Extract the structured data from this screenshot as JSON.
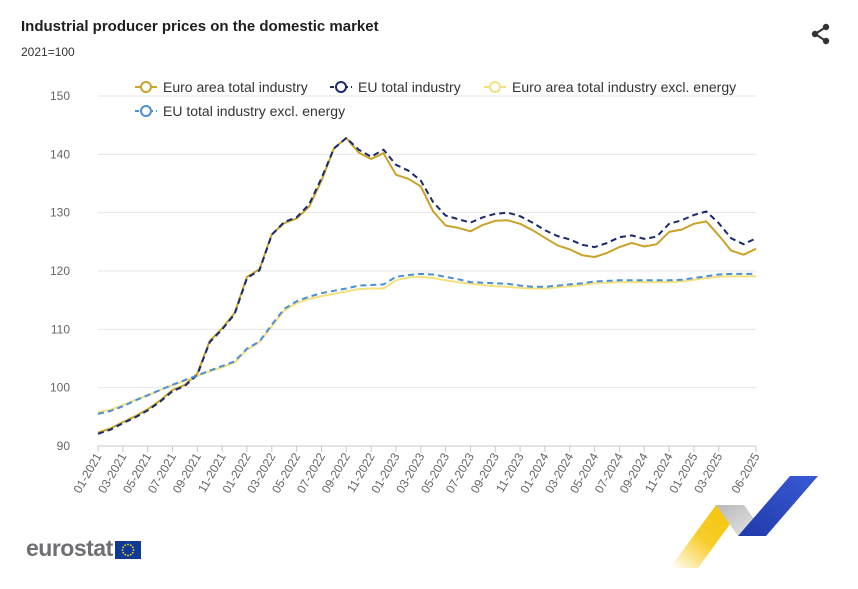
{
  "header": {
    "title": "Industrial producer prices on the domestic market",
    "subtitle": "2021=100"
  },
  "share": {
    "icon": "share-icon"
  },
  "logo": {
    "text": "eurostat",
    "flag_icon": "eu-flag-icon"
  },
  "colors": {
    "ea_total": "#c9a227",
    "eu_total": "#1a2a6c",
    "ea_excl": "#f4e07e",
    "eu_excl": "#4a8fd9",
    "grid": "#e6e6e6",
    "axis_text": "#666666",
    "logo_gray": "#6f7073",
    "deco_yellow": "#f7cd2a",
    "deco_blue": "#2a45b8"
  },
  "chart_data": {
    "type": "line",
    "title": "Industrial producer prices on the domestic market",
    "subtitle": "2021=100",
    "xlabel": "",
    "ylabel": "",
    "ylim": [
      90,
      150
    ],
    "yticks": [
      90,
      100,
      110,
      120,
      130,
      140,
      150
    ],
    "grid": true,
    "legend_position": "top",
    "x_tick_labels": [
      "01-2021",
      "03-2021",
      "05-2021",
      "07-2021",
      "09-2021",
      "11-2021",
      "01-2022",
      "03-2022",
      "05-2022",
      "07-2022",
      "09-2022",
      "11-2022",
      "01-2023",
      "03-2023",
      "05-2023",
      "07-2023",
      "09-2023",
      "11-2023",
      "01-2024",
      "03-2024",
      "05-2024",
      "07-2024",
      "09-2024",
      "11-2024",
      "01-2025",
      "03-2025",
      "06-2025"
    ],
    "x": [
      "01-2021",
      "02-2021",
      "03-2021",
      "04-2021",
      "05-2021",
      "06-2021",
      "07-2021",
      "08-2021",
      "09-2021",
      "10-2021",
      "11-2021",
      "12-2021",
      "01-2022",
      "02-2022",
      "03-2022",
      "04-2022",
      "05-2022",
      "06-2022",
      "07-2022",
      "08-2022",
      "09-2022",
      "10-2022",
      "11-2022",
      "12-2022",
      "01-2023",
      "02-2023",
      "03-2023",
      "04-2023",
      "05-2023",
      "06-2023",
      "07-2023",
      "08-2023",
      "09-2023",
      "10-2023",
      "11-2023",
      "12-2023",
      "01-2024",
      "02-2024",
      "03-2024",
      "04-2024",
      "05-2024",
      "06-2024",
      "07-2024",
      "08-2024",
      "09-2024",
      "10-2024",
      "11-2024",
      "12-2024",
      "01-2025",
      "02-2025",
      "03-2025",
      "04-2025",
      "05-2025",
      "06-2025"
    ],
    "series": [
      {
        "name": "Euro area total industry",
        "style": "solid",
        "values": [
          92.3,
          93.0,
          94.1,
          95.1,
          96.3,
          97.8,
          99.6,
          100.5,
          102.4,
          108.0,
          110.2,
          112.8,
          119.0,
          120.3,
          126.3,
          128.2,
          129.0,
          131.0,
          135.5,
          141.0,
          142.8,
          140.3,
          139.2,
          140.2,
          136.5,
          135.8,
          134.5,
          130.2,
          127.8,
          127.4,
          126.8,
          127.9,
          128.6,
          128.7,
          128.1,
          127.0,
          125.7,
          124.4,
          123.7,
          122.7,
          122.4,
          123.1,
          124.1,
          124.8,
          124.2,
          124.6,
          126.7,
          127.1,
          128.1,
          128.5,
          126.1,
          123.5,
          122.8,
          123.8
        ]
      },
      {
        "name": "EU total industry",
        "style": "dashed",
        "values": [
          92.1,
          92.8,
          93.9,
          94.9,
          96.1,
          97.6,
          99.4,
          100.3,
          102.2,
          107.8,
          110.0,
          112.6,
          118.8,
          120.1,
          126.2,
          128.4,
          129.2,
          131.4,
          135.9,
          141.0,
          142.8,
          140.8,
          139.6,
          140.8,
          138.2,
          137.2,
          135.5,
          131.8,
          129.5,
          128.9,
          128.3,
          129.2,
          129.8,
          130.0,
          129.4,
          128.3,
          127.0,
          126.0,
          125.4,
          124.5,
          124.1,
          124.8,
          125.8,
          126.1,
          125.5,
          125.9,
          128.1,
          128.7,
          129.6,
          130.2,
          128.2,
          125.6,
          124.6,
          125.6
        ]
      },
      {
        "name": "Euro area total industry excl. energy",
        "style": "solid",
        "values": [
          95.8,
          96.2,
          97.0,
          97.9,
          98.7,
          99.6,
          100.4,
          101.2,
          102.0,
          102.8,
          103.5,
          104.3,
          106.5,
          107.8,
          110.5,
          113.2,
          114.5,
          115.2,
          115.7,
          116.1,
          116.5,
          116.9,
          117.0,
          117.0,
          118.4,
          118.9,
          119.0,
          118.8,
          118.4,
          118.1,
          117.8,
          117.6,
          117.4,
          117.3,
          117.1,
          117.0,
          117.0,
          117.2,
          117.4,
          117.6,
          117.9,
          118.0,
          118.1,
          118.1,
          118.1,
          118.1,
          118.1,
          118.2,
          118.5,
          118.8,
          119.0,
          119.1,
          119.1,
          119.1
        ]
      },
      {
        "name": "EU total industry excl. energy",
        "style": "dashed",
        "values": [
          95.5,
          96.0,
          96.8,
          97.8,
          98.7,
          99.6,
          100.5,
          101.3,
          102.1,
          102.9,
          103.7,
          104.5,
          106.7,
          107.9,
          110.8,
          113.5,
          114.8,
          115.6,
          116.2,
          116.6,
          117.0,
          117.5,
          117.6,
          117.7,
          119.0,
          119.3,
          119.5,
          119.4,
          119.0,
          118.6,
          118.1,
          118.0,
          117.9,
          117.8,
          117.5,
          117.3,
          117.3,
          117.5,
          117.7,
          117.9,
          118.2,
          118.3,
          118.4,
          118.4,
          118.4,
          118.4,
          118.4,
          118.5,
          118.8,
          119.1,
          119.4,
          119.5,
          119.5,
          119.5
        ]
      }
    ]
  }
}
